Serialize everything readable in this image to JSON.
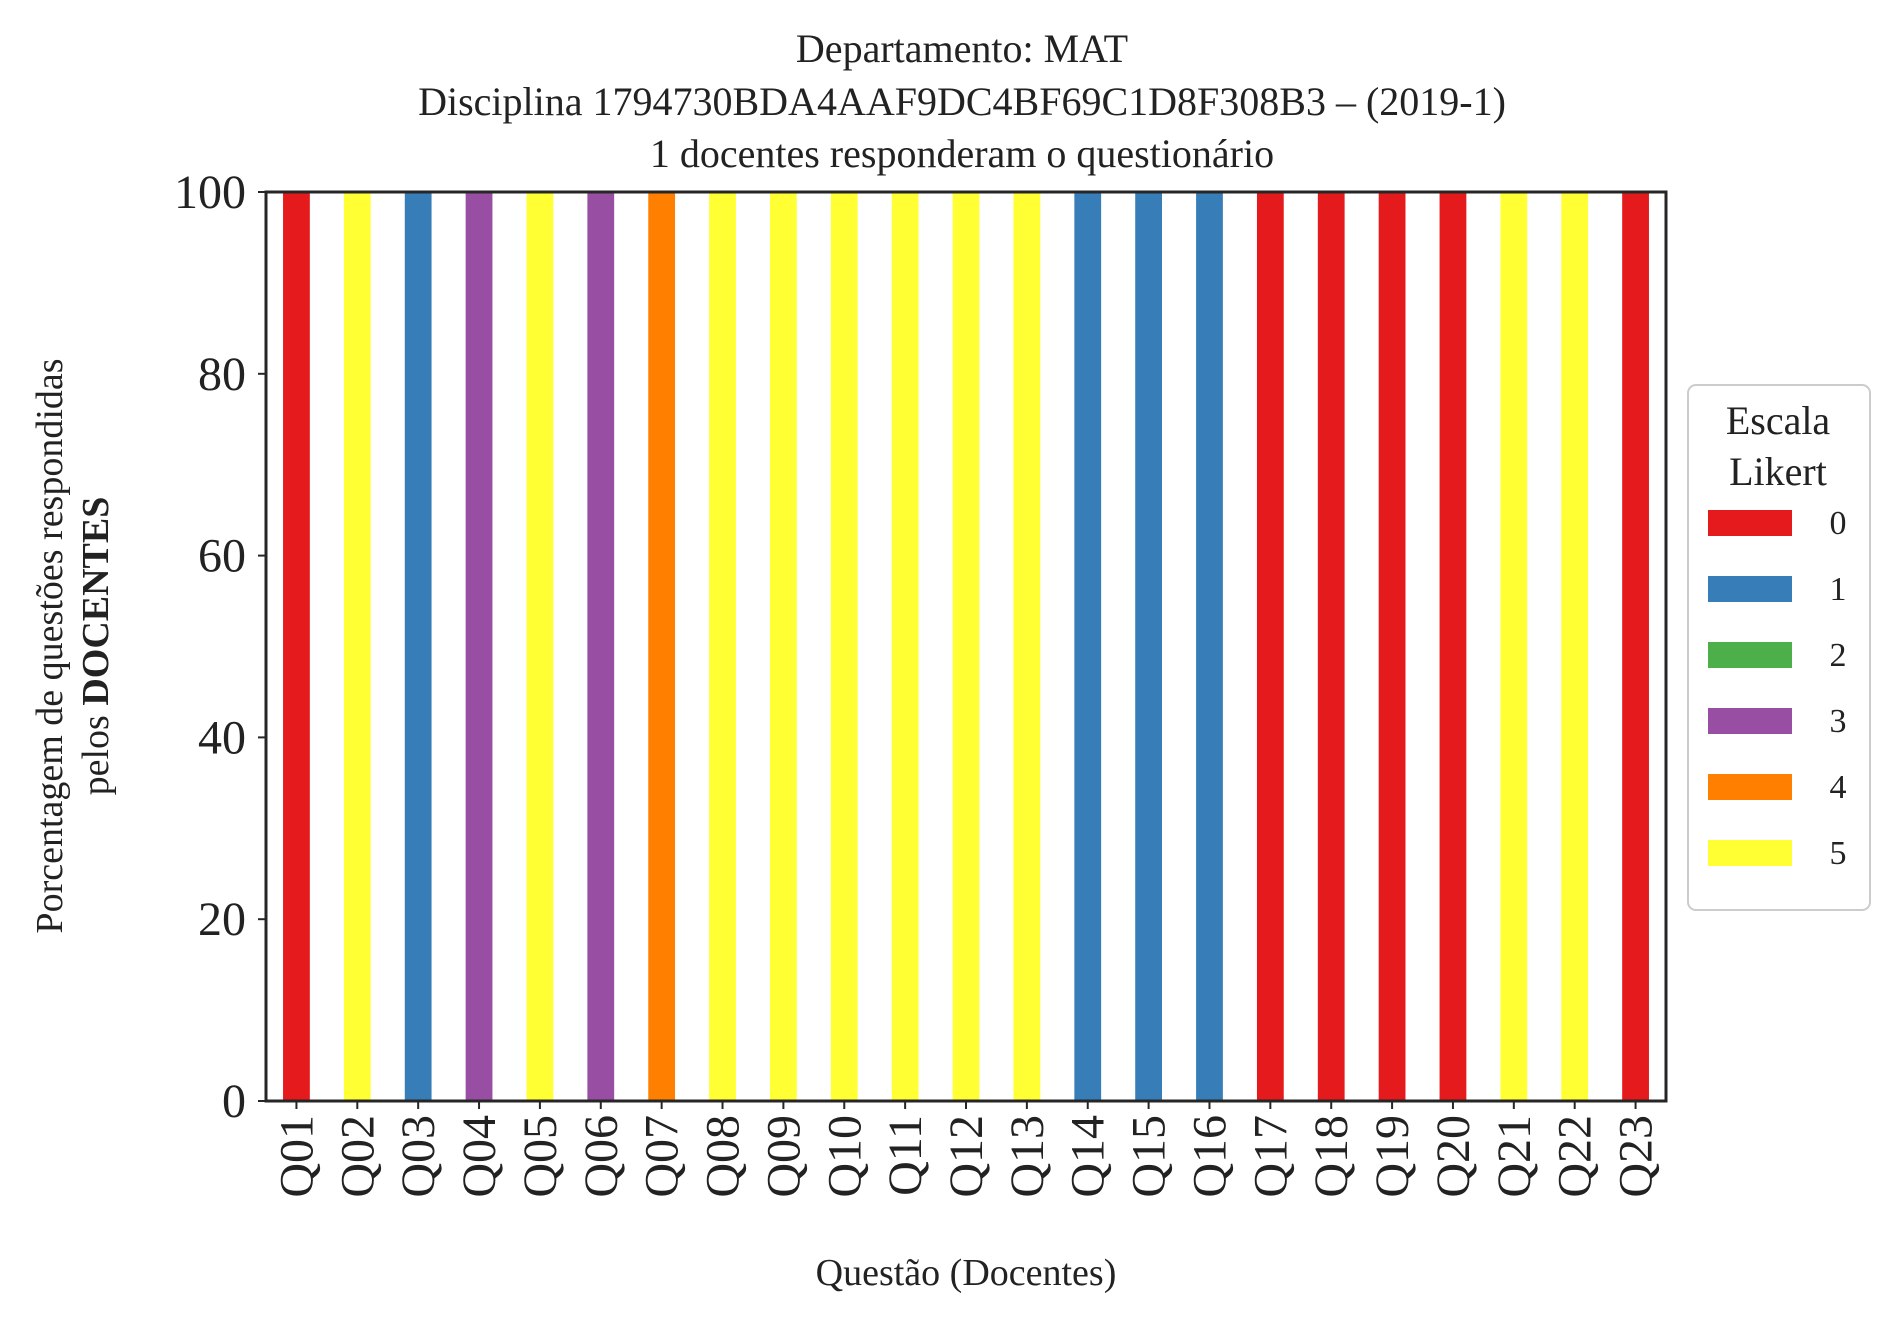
{
  "chart_data": {
    "type": "bar",
    "stacked": true,
    "title": [
      "Departamento: MAT",
      "Disciplina 1794730BDA4AAF9DC4BF69C1D8F308B3 – (2019-1)",
      "1 docentes responderam o questionário"
    ],
    "xlabel": "Questão (Docentes)",
    "ylabel_line1": "Porcentagem de questões respondidas",
    "ylabel_line2_prefix": "pelos ",
    "ylabel_line2_bold": "DOCENTES",
    "ylim": [
      0,
      100
    ],
    "yticks": [
      "0",
      "20",
      "40",
      "60",
      "80",
      "100"
    ],
    "grid": false,
    "legend_position": "right",
    "legend_title": [
      "Escala",
      "Likert"
    ],
    "categories": [
      "Q01",
      "Q02",
      "Q03",
      "Q04",
      "Q05",
      "Q06",
      "Q07",
      "Q08",
      "Q09",
      "Q10",
      "Q11",
      "Q12",
      "Q13",
      "Q14",
      "Q15",
      "Q16",
      "Q17",
      "Q18",
      "Q19",
      "Q20",
      "Q21",
      "Q22",
      "Q23"
    ],
    "series": [
      {
        "name": "0",
        "color": "#e41a1c",
        "values": [
          100,
          0,
          0,
          0,
          0,
          0,
          0,
          0,
          0,
          0,
          0,
          0,
          0,
          0,
          0,
          0,
          100,
          100,
          100,
          100,
          0,
          0,
          100
        ]
      },
      {
        "name": "1",
        "color": "#377eb8",
        "values": [
          0,
          0,
          100,
          0,
          0,
          0,
          0,
          0,
          0,
          0,
          0,
          0,
          0,
          100,
          100,
          100,
          0,
          0,
          0,
          0,
          0,
          0,
          0
        ]
      },
      {
        "name": "2",
        "color": "#4daf4a",
        "values": [
          0,
          0,
          0,
          0,
          0,
          0,
          0,
          0,
          0,
          0,
          0,
          0,
          0,
          0,
          0,
          0,
          0,
          0,
          0,
          0,
          0,
          0,
          0
        ]
      },
      {
        "name": "3",
        "color": "#984ea3",
        "values": [
          0,
          0,
          0,
          100,
          0,
          100,
          0,
          0,
          0,
          0,
          0,
          0,
          0,
          0,
          0,
          0,
          0,
          0,
          0,
          0,
          0,
          0,
          0
        ]
      },
      {
        "name": "4",
        "color": "#ff7f00",
        "values": [
          0,
          0,
          0,
          0,
          0,
          0,
          100,
          0,
          0,
          0,
          0,
          0,
          0,
          0,
          0,
          0,
          0,
          0,
          0,
          0,
          0,
          0,
          0
        ]
      },
      {
        "name": "5",
        "color": "#ffff33",
        "values": [
          0,
          100,
          0,
          0,
          100,
          0,
          0,
          100,
          100,
          100,
          100,
          100,
          100,
          0,
          0,
          0,
          0,
          0,
          0,
          0,
          100,
          100,
          0
        ]
      }
    ]
  }
}
